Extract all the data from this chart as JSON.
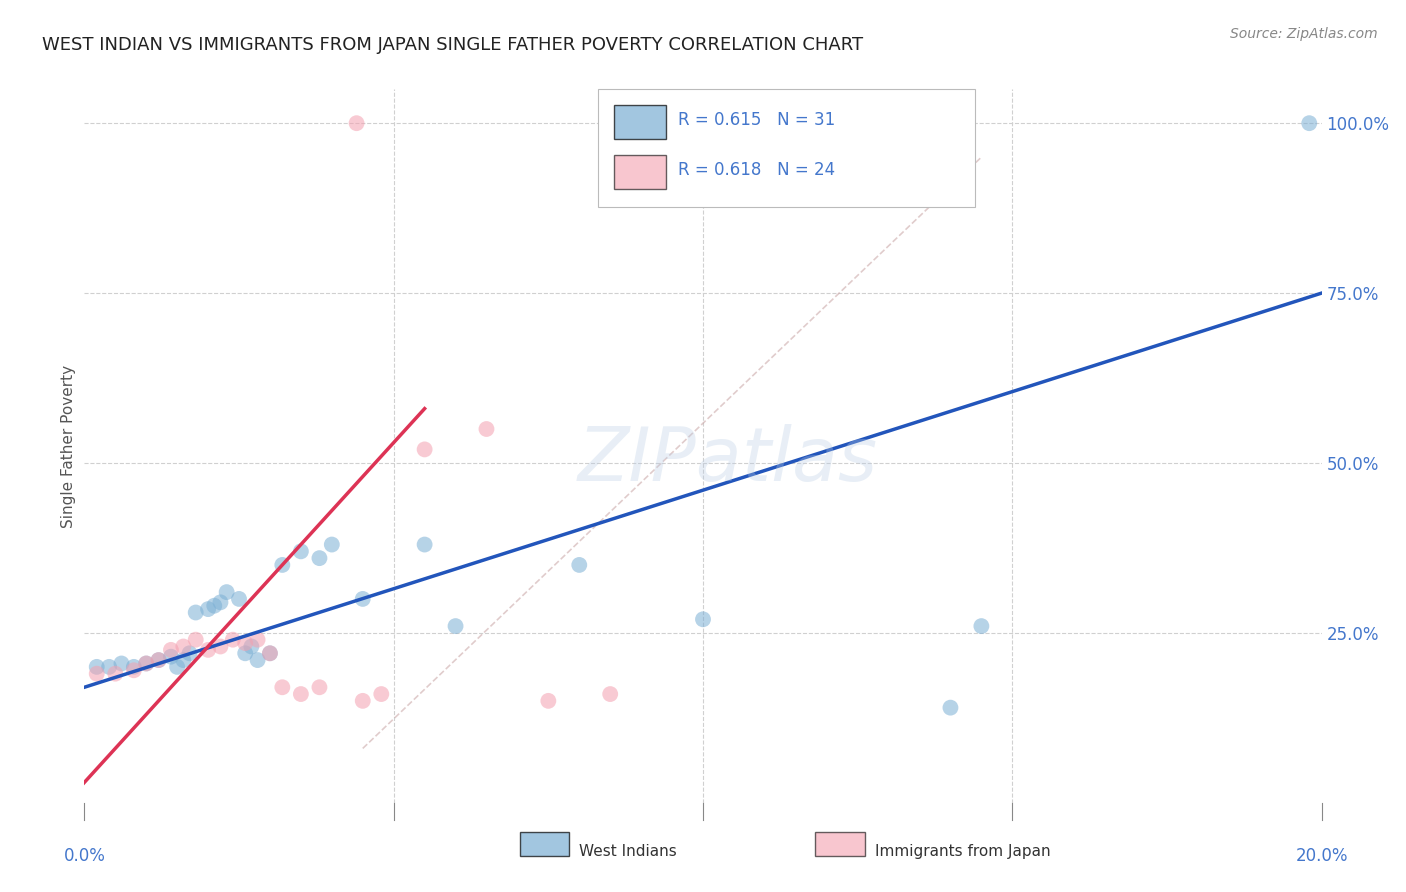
{
  "title": "WEST INDIAN VS IMMIGRANTS FROM JAPAN SINGLE FATHER POVERTY CORRELATION CHART",
  "source": "Source: ZipAtlas.com",
  "ylabel": "Single Father Poverty",
  "legend_bottom": [
    "West Indians",
    "Immigrants from Japan"
  ],
  "blue_scatter": [
    [
      0.2,
      20.0
    ],
    [
      0.4,
      20.0
    ],
    [
      0.6,
      20.5
    ],
    [
      0.8,
      20.0
    ],
    [
      1.0,
      20.5
    ],
    [
      1.2,
      21.0
    ],
    [
      1.4,
      21.5
    ],
    [
      1.5,
      20.0
    ],
    [
      1.6,
      21.0
    ],
    [
      1.7,
      22.0
    ],
    [
      1.8,
      28.0
    ],
    [
      2.0,
      28.5
    ],
    [
      2.1,
      29.0
    ],
    [
      2.2,
      29.5
    ],
    [
      2.3,
      31.0
    ],
    [
      2.5,
      30.0
    ],
    [
      2.6,
      22.0
    ],
    [
      2.7,
      23.0
    ],
    [
      2.8,
      21.0
    ],
    [
      3.0,
      22.0
    ],
    [
      3.2,
      35.0
    ],
    [
      3.5,
      37.0
    ],
    [
      3.8,
      36.0
    ],
    [
      4.0,
      38.0
    ],
    [
      4.5,
      30.0
    ],
    [
      5.5,
      38.0
    ],
    [
      6.0,
      26.0
    ],
    [
      8.0,
      35.0
    ],
    [
      10.0,
      27.0
    ],
    [
      14.0,
      14.0
    ],
    [
      14.5,
      26.0
    ],
    [
      19.8,
      100.0
    ]
  ],
  "pink_scatter": [
    [
      0.2,
      19.0
    ],
    [
      0.5,
      19.0
    ],
    [
      0.8,
      19.5
    ],
    [
      1.0,
      20.5
    ],
    [
      1.2,
      21.0
    ],
    [
      1.4,
      22.5
    ],
    [
      1.6,
      23.0
    ],
    [
      1.8,
      24.0
    ],
    [
      2.0,
      22.5
    ],
    [
      2.2,
      23.0
    ],
    [
      2.4,
      24.0
    ],
    [
      2.6,
      23.5
    ],
    [
      2.8,
      24.0
    ],
    [
      3.0,
      22.0
    ],
    [
      3.2,
      17.0
    ],
    [
      3.5,
      16.0
    ],
    [
      3.8,
      17.0
    ],
    [
      4.5,
      15.0
    ],
    [
      4.8,
      16.0
    ],
    [
      5.5,
      52.0
    ],
    [
      6.5,
      55.0
    ],
    [
      7.5,
      15.0
    ],
    [
      8.5,
      16.0
    ],
    [
      4.4,
      100.0
    ]
  ],
  "blue_line_x": [
    0.0,
    20.0
  ],
  "blue_line_y": [
    17.0,
    75.0
  ],
  "pink_line_x": [
    -0.3,
    5.5
  ],
  "pink_line_y": [
    0.0,
    58.0
  ],
  "diag_line_x": [
    4.5,
    14.5
  ],
  "diag_line_y": [
    8.0,
    95.0
  ],
  "watermark": "ZIPatlas",
  "bg_color": "#ffffff",
  "scatter_alpha": 0.55,
  "scatter_size": 130,
  "blue_color": "#7bafd4",
  "pink_color": "#f4a0b0",
  "blue_line_color": "#2255bb",
  "pink_line_color": "#dd3355",
  "title_fontsize": 13,
  "axis_color": "#4477cc",
  "xmin": 0.0,
  "xmax": 20.0,
  "ymin": 0.0,
  "ymax": 105.0,
  "ytick_vals": [
    25.0,
    50.0,
    75.0,
    100.0
  ],
  "ytick_labels": [
    "25.0%",
    "50.0%",
    "75.0%",
    "100.0%"
  ],
  "xtick_left_label": "0.0%",
  "xtick_right_label": "20.0%"
}
